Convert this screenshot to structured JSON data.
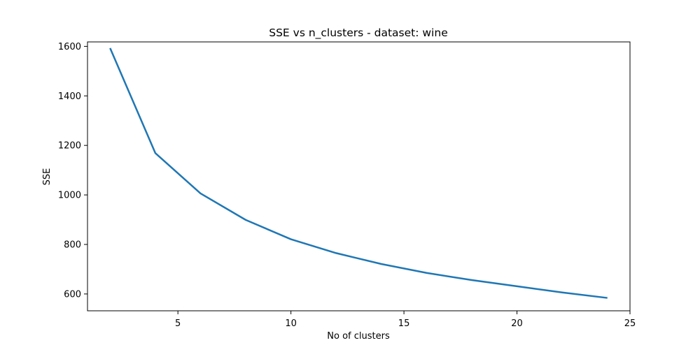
{
  "chart_data": {
    "type": "line",
    "title": "SSE vs n_clusters - dataset: wine",
    "xlabel": "No of clusters",
    "ylabel": "SSE",
    "xlim": [
      1.0,
      25.0
    ],
    "ylim": [
      532,
      1618
    ],
    "xticks": [
      5,
      10,
      15,
      20,
      25
    ],
    "yticks": [
      600,
      800,
      1000,
      1200,
      1400,
      1600
    ],
    "grid": false,
    "series": [
      {
        "x": [
          2,
          4,
          6,
          8,
          10,
          12,
          14,
          16,
          18,
          20,
          22,
          24
        ],
        "y": [
          1593,
          1169,
          1006,
          899,
          821,
          765,
          721,
          685,
          656,
          631,
          606,
          584
        ],
        "color": "#1f77b4"
      }
    ]
  }
}
